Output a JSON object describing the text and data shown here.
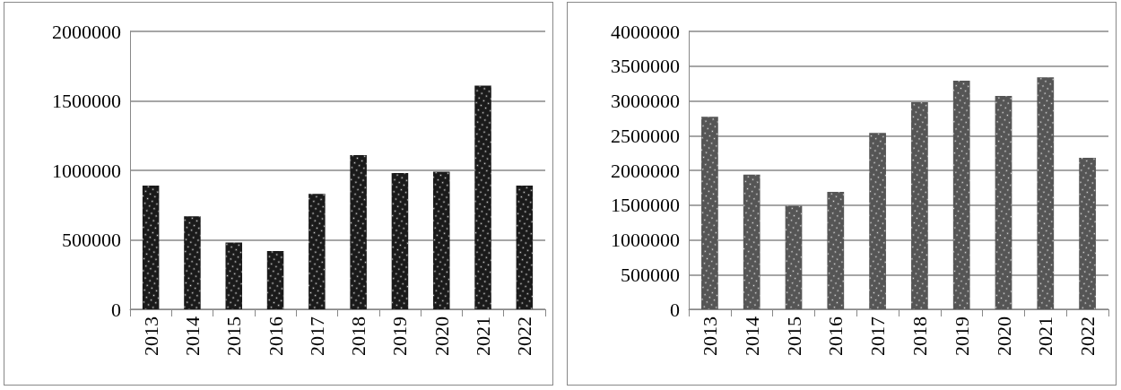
{
  "chart_data": [
    {
      "type": "bar",
      "categories": [
        "2013",
        "2014",
        "2015",
        "2016",
        "2017",
        "2018",
        "2019",
        "2020",
        "2021",
        "2022"
      ],
      "values": [
        890000,
        670000,
        480000,
        420000,
        830000,
        1110000,
        980000,
        990000,
        1610000,
        890000
      ],
      "color": "#1a1a1a",
      "ylim": [
        0,
        2000000
      ],
      "yticks": [
        0,
        500000,
        1000000,
        1500000,
        2000000
      ],
      "grid": "y"
    },
    {
      "type": "bar",
      "categories": [
        "2013",
        "2014",
        "2015",
        "2016",
        "2017",
        "2018",
        "2019",
        "2020",
        "2021",
        "2022"
      ],
      "values": [
        2770000,
        1940000,
        1490000,
        1690000,
        2540000,
        2980000,
        3290000,
        3070000,
        3340000,
        2180000
      ],
      "color": "#555555",
      "ylim": [
        0,
        4000000
      ],
      "yticks": [
        0,
        500000,
        1000000,
        1500000,
        2000000,
        2500000,
        3000000,
        3500000,
        4000000
      ],
      "grid": "y"
    }
  ]
}
